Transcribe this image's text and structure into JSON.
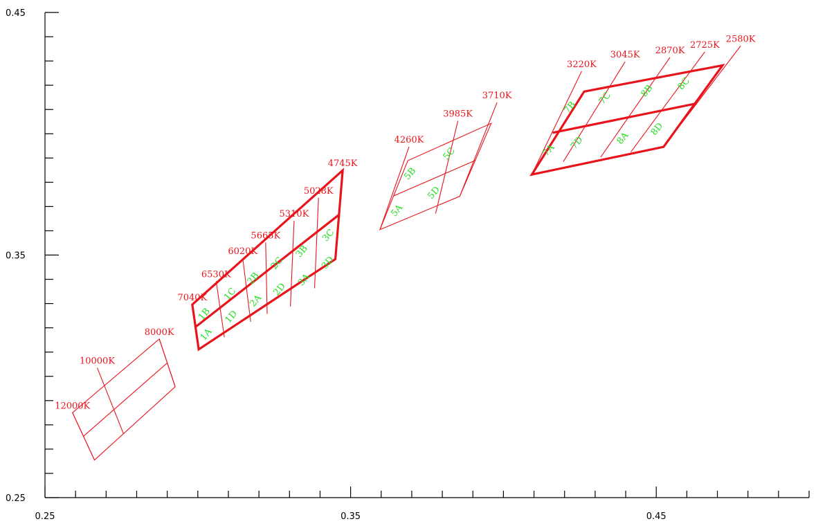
{
  "chart_data": {
    "type": "diagram",
    "x_axis": {
      "min": 0.25,
      "max": 0.5,
      "major_ticks": [
        0.25,
        0.35,
        0.45
      ],
      "tick_labels": [
        "0.25",
        "0.35",
        "0.45"
      ],
      "minor_step": 0.01
    },
    "y_axis": {
      "min": 0.25,
      "max": 0.45,
      "major_ticks": [
        0.25,
        0.35,
        0.45
      ],
      "tick_labels": [
        "0.25",
        "0.35",
        "0.45"
      ],
      "minor_step": 0.01
    },
    "grid": false,
    "colors": {
      "lines": "#e8141c",
      "cct_labels": "#e8141c",
      "cell_labels": "#22dd22",
      "axes": "#000000"
    },
    "groups": [
      {
        "name": "12000K-8000K",
        "thick": false,
        "cct_lines": [
          {
            "label": "12000K",
            "points": [
              [
                0.259,
                0.285
              ],
              [
                0.2662,
                0.2655
              ]
            ]
          },
          {
            "label": "10000K",
            "points": [
              [
                0.2671,
                0.3035
              ],
              [
                0.2757,
                0.2763
              ]
            ]
          },
          {
            "label": "8000K",
            "points": [
              [
                0.2874,
                0.3154
              ],
              [
                0.2926,
                0.2957
              ]
            ]
          }
        ],
        "outline": [
          [
            0.2662,
            0.2655
          ],
          [
            0.2926,
            0.2957
          ],
          [
            0.2874,
            0.3154
          ],
          [
            0.259,
            0.285
          ]
        ],
        "inner": [
          [
            [
              0.2626,
              0.2753
            ],
            [
              0.29,
              0.3055
            ]
          ]
        ],
        "cells": []
      },
      {
        "name": "7040K-4745K",
        "thick": true,
        "cct_lines": [
          {
            "label": "7040K",
            "points": [
              [
                0.2982,
                0.3296
              ],
              [
                0.3003,
                0.3111
              ]
            ]
          },
          {
            "label": "6530K",
            "points": [
              [
                0.306,
                0.3392
              ],
              [
                0.3087,
                0.3161
              ]
            ]
          },
          {
            "label": "6020K",
            "points": [
              [
                0.3147,
                0.3487
              ],
              [
                0.3173,
                0.3225
              ]
            ]
          },
          {
            "label": "5665K",
            "points": [
              [
                0.3222,
                0.3552
              ],
              [
                0.3227,
                0.3257
              ]
            ]
          },
          {
            "label": "5310K",
            "points": [
              [
                0.3315,
                0.3641
              ],
              [
                0.3303,
                0.3288
              ]
            ]
          },
          {
            "label": "5028K",
            "points": [
              [
                0.3395,
                0.3736
              ],
              [
                0.3382,
                0.3363
              ]
            ]
          },
          {
            "label": "4745K",
            "points": [
              [
                0.3474,
                0.3849
              ],
              [
                0.345,
                0.3483
              ]
            ]
          }
        ],
        "outline": [
          [
            0.3003,
            0.3111
          ],
          [
            0.345,
            0.3483
          ],
          [
            0.3474,
            0.3849
          ],
          [
            0.2982,
            0.3296
          ]
        ],
        "inner": [
          [
            [
              0.2993,
              0.3204
            ],
            [
              0.3462,
              0.3666
            ]
          ],
          [
            [
              0.3073,
              0.3277
            ],
            [
              0.3073,
              0.3277
            ]
          ]
        ],
        "cells": [
          {
            "label": "1A",
            "pos": [
              0.3034,
              0.3165
            ]
          },
          {
            "label": "1B",
            "pos": [
              0.3028,
              0.3249
            ]
          },
          {
            "label": "1C",
            "pos": [
              0.3112,
              0.3332
            ]
          },
          {
            "label": "1D",
            "pos": [
              0.3116,
              0.3238
            ]
          },
          {
            "label": "2A",
            "pos": [
              0.3196,
              0.3304
            ]
          },
          {
            "label": "2B",
            "pos": [
              0.3188,
              0.3396
            ]
          },
          {
            "label": "2C",
            "pos": [
              0.3266,
              0.3459
            ]
          },
          {
            "label": "2D",
            "pos": [
              0.3274,
              0.3351
            ]
          },
          {
            "label": "3A",
            "pos": [
              0.3354,
              0.3391
            ]
          },
          {
            "label": "3B",
            "pos": [
              0.3347,
              0.3508
            ]
          },
          {
            "label": "3C",
            "pos": [
              0.3434,
              0.3574
            ]
          },
          {
            "label": "3D",
            "pos": [
              0.3432,
              0.3461
            ]
          }
        ]
      },
      {
        "name": "4260K-3710K",
        "thick": false,
        "cct_lines": [
          {
            "label": "4260K",
            "points": [
              [
                0.3691,
                0.3946
              ],
              [
                0.3596,
                0.3605
              ]
            ]
          },
          {
            "label": "3985K",
            "points": [
              [
                0.3851,
                0.4053
              ],
              [
                0.3778,
                0.3671
              ]
            ]
          },
          {
            "label": "3710K",
            "points": [
              [
                0.3979,
                0.4129
              ],
              [
                0.3857,
                0.3742
              ]
            ]
          }
        ],
        "outline": [
          [
            0.3596,
            0.3605
          ],
          [
            0.3857,
            0.3742
          ],
          [
            0.396,
            0.4043
          ],
          [
            0.3687,
            0.3889
          ]
        ],
        "inner": [
          [
            [
              0.3641,
              0.3744
            ],
            [
              0.3908,
              0.389
            ]
          ]
        ],
        "cells": [
          {
            "label": "5A",
            "pos": [
              0.3658,
              0.3676
            ]
          },
          {
            "label": "5B",
            "pos": [
              0.3701,
              0.3828
            ]
          },
          {
            "label": "5C",
            "pos": [
              0.3829,
              0.391
            ]
          },
          {
            "label": "5D",
            "pos": [
              0.3779,
              0.3749
            ]
          }
        ]
      },
      {
        "name": "3220K-2580K",
        "thick": true,
        "cct_lines": [
          {
            "label": "3220K",
            "points": [
              [
                0.4256,
                0.4258
              ],
              [
                0.4093,
                0.3832
              ]
            ]
          },
          {
            "label": "3045K",
            "points": [
              [
                0.4398,
                0.4297
              ],
              [
                0.4196,
                0.3885
              ]
            ]
          },
          {
            "label": "2870K",
            "points": [
              [
                0.4545,
                0.4315
              ],
              [
                0.4318,
                0.3903
              ]
            ]
          },
          {
            "label": "2725K",
            "points": [
              [
                0.4659,
                0.4338
              ],
              [
                0.4417,
                0.3925
              ]
            ]
          },
          {
            "label": "2580K",
            "points": [
              [
                0.4776,
                0.4362
              ],
              [
                0.4524,
                0.3946
              ]
            ]
          }
        ],
        "outline": [
          [
            0.4093,
            0.3832
          ],
          [
            0.4524,
            0.3946
          ],
          [
            0.4717,
            0.4282
          ],
          [
            0.4264,
            0.4174
          ]
        ],
        "inner": [
          [
            [
              0.4161,
              0.4004
            ],
            [
              0.4632,
              0.4125
            ]
          ]
        ],
        "cells": [
          {
            "label": "7A",
            "pos": [
              0.4155,
              0.3924
            ]
          },
          {
            "label": "7B",
            "pos": [
              0.4224,
              0.4101
            ]
          },
          {
            "label": "7C",
            "pos": [
              0.4339,
              0.4139
            ]
          },
          {
            "label": "7D",
            "pos": [
              0.4247,
              0.3955
            ]
          },
          {
            "label": "8A",
            "pos": [
              0.4397,
              0.3974
            ]
          },
          {
            "label": "8B",
            "pos": [
              0.4476,
              0.4169
            ]
          },
          {
            "label": "8C",
            "pos": [
              0.4597,
              0.4199
            ]
          },
          {
            "label": "8D",
            "pos": [
              0.4509,
              0.4012
            ]
          }
        ]
      }
    ]
  }
}
